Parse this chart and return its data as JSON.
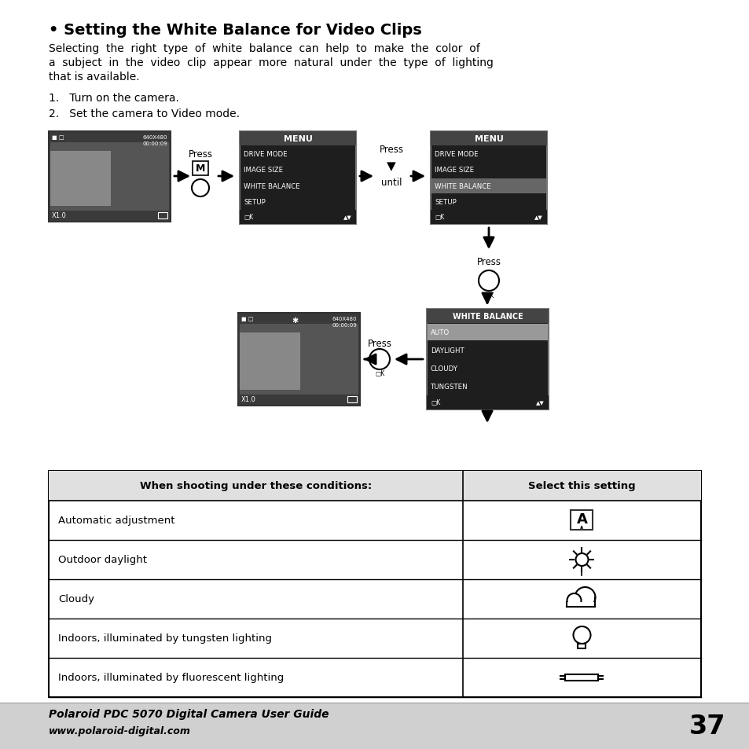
{
  "title": "• Setting the White Balance for Video Clips",
  "intro_lines": [
    "Selecting  the  right  type  of  white  balance  can  help  to  make  the  color  of",
    "a  subject  in  the  video  clip  appear  more  natural  under  the  type  of  lighting",
    "that is available."
  ],
  "step1": "1.   Turn on the camera.",
  "step2": "2.   Set the camera to Video mode.",
  "table_header_col1": "When shooting under these conditions:",
  "table_header_col2": "Select this setting",
  "table_rows": [
    "Automatic adjustment",
    "Outdoor daylight",
    "Cloudy",
    "Indoors, illuminated by tungsten lighting",
    "Indoors, illuminated by fluorescent lighting"
  ],
  "footer_bold": "Polaroid PDC 5070 Digital Camera User Guide",
  "footer_url": "www.polaroid-digital.com",
  "page_number": "37",
  "bg_color": "#ffffff",
  "menu_bg": "#1e1e1e",
  "menu_title_bg": "#444444",
  "menu_highlight": "#666666",
  "footer_bg": "#d0d0d0"
}
